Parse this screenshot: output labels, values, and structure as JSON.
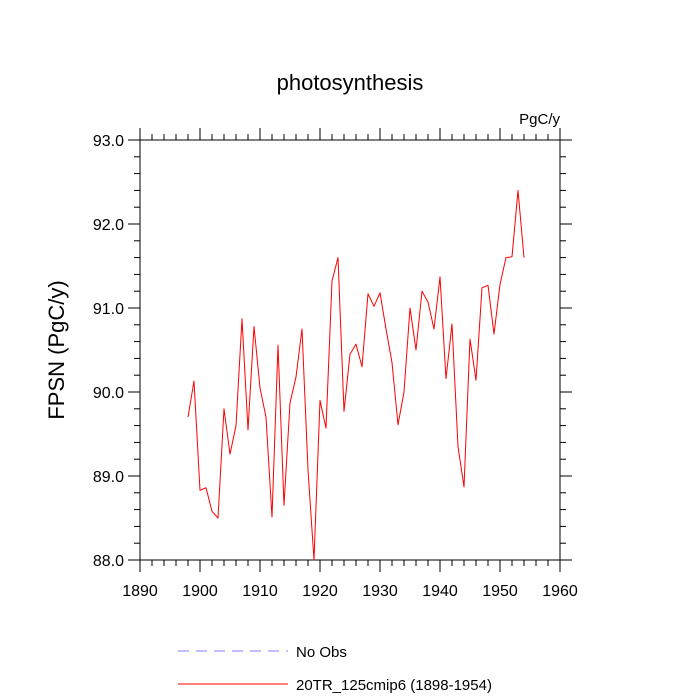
{
  "chart_data": {
    "type": "line",
    "title": "photosynthesis",
    "units": "PgC/y",
    "ylabel": "FPSN  (PgC/y)",
    "xlabel": "",
    "xlim": [
      1890,
      1960
    ],
    "ylim": [
      88.0,
      93.0
    ],
    "x_ticks": [
      "1890",
      "1900",
      "1910",
      "1920",
      "1930",
      "1940",
      "1950",
      "1960"
    ],
    "y_ticks": [
      "88.0",
      "89.0",
      "90.0",
      "91.0",
      "92.0",
      "93.0"
    ],
    "grid": false,
    "legend_position": "bottom",
    "series": [
      {
        "name": "20TR_125cmip6 (1898-1954)",
        "color": "#ff0000",
        "style": "solid",
        "x": [
          1898,
          1899,
          1900,
          1901,
          1902,
          1903,
          1904,
          1905,
          1906,
          1907,
          1908,
          1909,
          1910,
          1911,
          1912,
          1913,
          1914,
          1915,
          1916,
          1917,
          1918,
          1919,
          1920,
          1921,
          1922,
          1923,
          1924,
          1925,
          1926,
          1927,
          1928,
          1929,
          1930,
          1931,
          1932,
          1933,
          1934,
          1935,
          1936,
          1937,
          1938,
          1939,
          1940,
          1941,
          1942,
          1943,
          1944,
          1945,
          1946,
          1947,
          1948,
          1949,
          1950,
          1951,
          1952,
          1953,
          1954
        ],
        "y": [
          89.7,
          90.13,
          88.83,
          88.86,
          88.58,
          88.5,
          89.8,
          89.26,
          89.6,
          90.87,
          89.55,
          90.78,
          90.05,
          89.7,
          88.51,
          90.56,
          88.65,
          89.87,
          90.18,
          90.75,
          89.07,
          88.0,
          89.9,
          89.57,
          91.32,
          91.6,
          89.77,
          90.45,
          90.57,
          90.3,
          91.17,
          91.02,
          91.18,
          90.75,
          90.35,
          89.61,
          90.0,
          91.0,
          90.5,
          91.2,
          91.07,
          90.75,
          91.37,
          90.16,
          90.81,
          89.35,
          88.87,
          90.63,
          90.14,
          91.24,
          91.27,
          90.69,
          91.28,
          91.6,
          91.61,
          92.4,
          91.6
        ]
      }
    ],
    "legend": [
      {
        "label": "No Obs",
        "color": "#8080ff",
        "style": "dashed"
      },
      {
        "label": "20TR_125cmip6 (1898-1954)",
        "color": "#ff0000",
        "style": "solid"
      }
    ]
  }
}
